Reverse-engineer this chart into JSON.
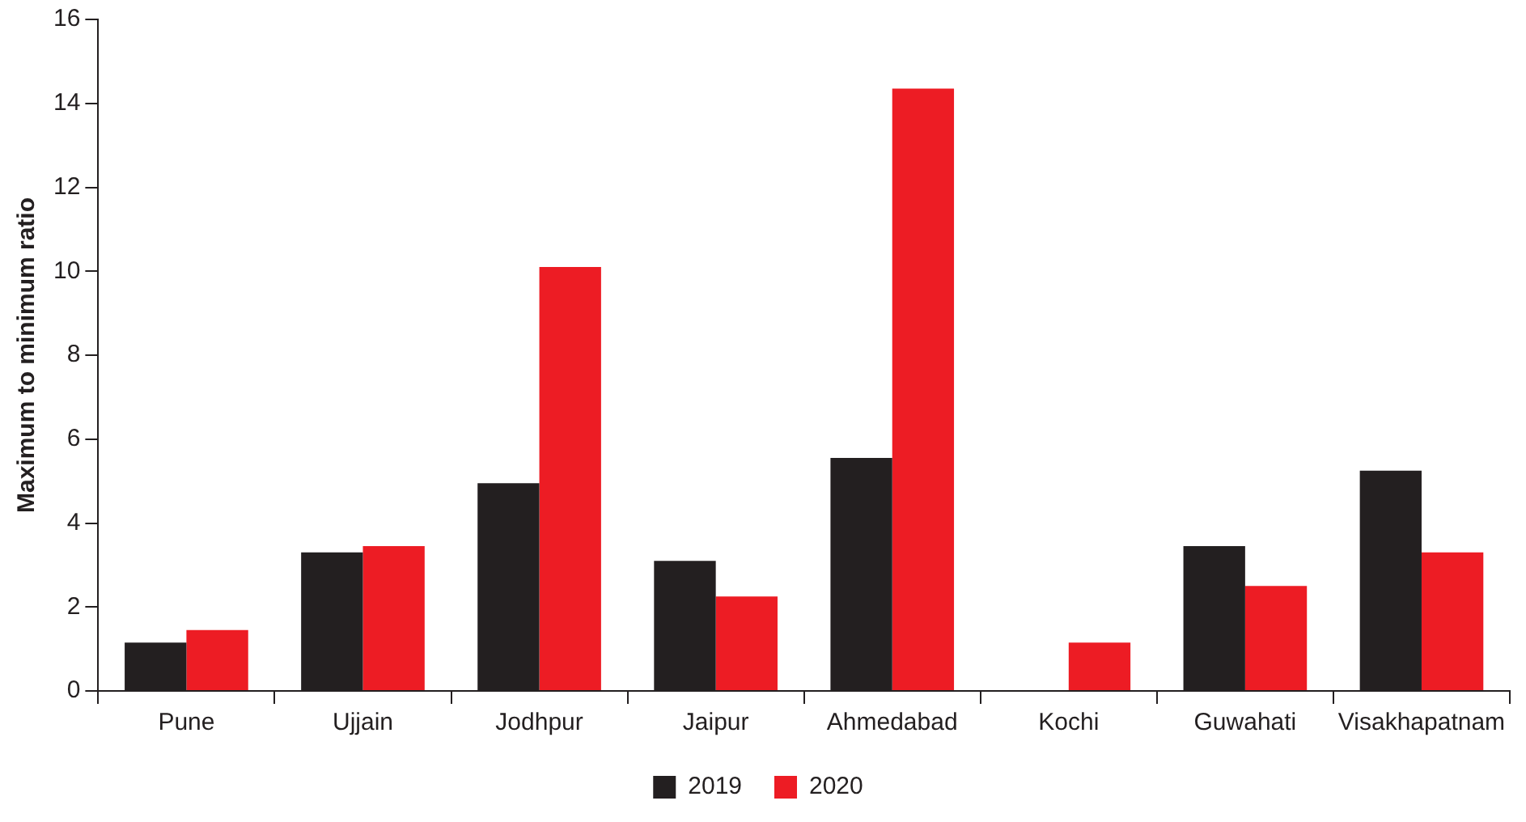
{
  "chart_data": {
    "type": "bar",
    "ylabel": "Maximum to minimum ratio",
    "categories": [
      "Pune",
      "Ujjain",
      "Jodhpur",
      "Jaipur",
      "Ahmedabad",
      "Kochi",
      "Guwahati",
      "Visakhapatnam"
    ],
    "series": [
      {
        "name": "2019",
        "color": "#231f20",
        "values": [
          1.15,
          3.3,
          4.95,
          3.1,
          5.55,
          null,
          3.45,
          5.25
        ]
      },
      {
        "name": "2020",
        "color": "#ed1c24",
        "values": [
          1.45,
          3.45,
          10.1,
          2.25,
          14.35,
          1.15,
          2.5,
          3.3
        ]
      }
    ],
    "ylim": [
      0,
      16
    ],
    "yticks": [
      0,
      2,
      4,
      6,
      8,
      10,
      12,
      14,
      16
    ],
    "grid": false,
    "legend": "bottom"
  }
}
